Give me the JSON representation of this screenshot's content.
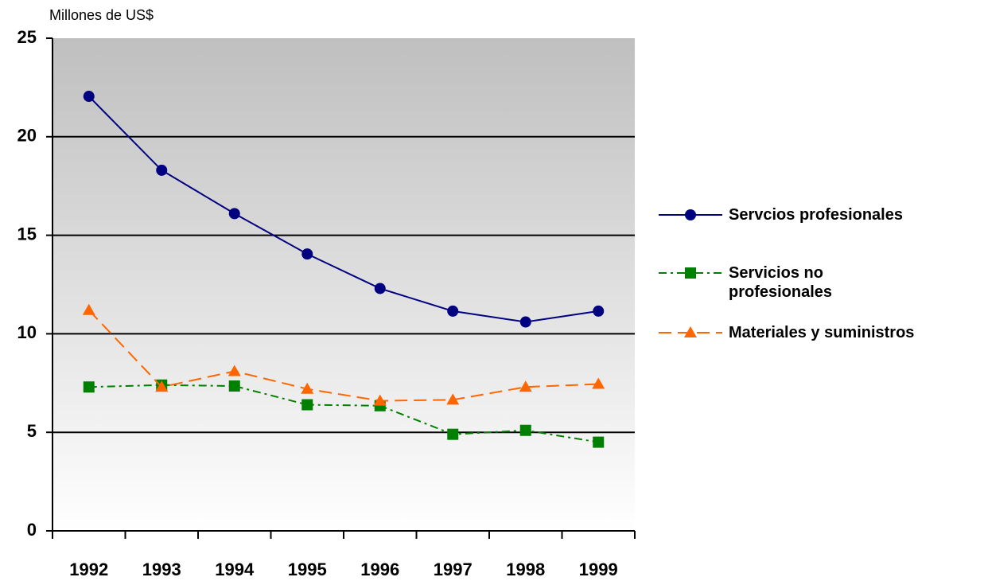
{
  "chart_data": {
    "type": "line",
    "y_axis_label": "Millones de US$",
    "categories": [
      "1992",
      "1993",
      "1994",
      "1995",
      "1996",
      "1997",
      "1998",
      "1999"
    ],
    "ylim": [
      0,
      25
    ],
    "yticks": [
      0,
      5,
      10,
      15,
      20,
      25
    ],
    "grid": true,
    "legend": "right",
    "series": [
      {
        "name": "Servcios profesionales",
        "color": "#000080",
        "line_style": "solid",
        "marker": "circle",
        "values": [
          22.05,
          18.3,
          16.1,
          14.05,
          12.3,
          11.15,
          10.6,
          11.15
        ]
      },
      {
        "name": "Servicios no profesionales",
        "color": "#008000",
        "line_style": "dashdot",
        "marker": "square",
        "values": [
          7.3,
          7.4,
          7.35,
          6.4,
          6.35,
          4.9,
          5.1,
          4.5
        ]
      },
      {
        "name": "Materiales y suministros",
        "color": "#ff6600",
        "line_style": "dashed",
        "marker": "triangle",
        "values": [
          11.2,
          7.3,
          8.1,
          7.2,
          6.6,
          6.65,
          7.3,
          7.45
        ]
      }
    ]
  }
}
